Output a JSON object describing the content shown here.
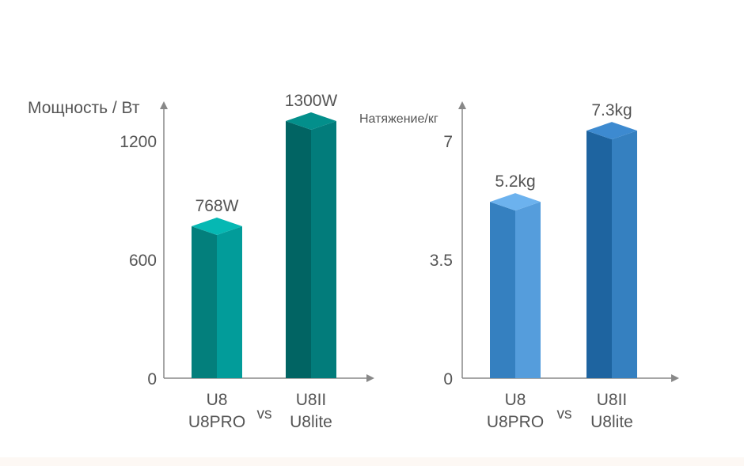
{
  "chart_data": [
    {
      "type": "bar",
      "ylabel": "Мощность / Вт",
      "yticks": [
        0,
        600,
        1200
      ],
      "ylim": [
        0,
        1420
      ],
      "categories": [
        [
          "U8",
          "U8PRO"
        ],
        [
          "U8II",
          "U8lite"
        ]
      ],
      "separator": "vs",
      "values": [
        768,
        1300
      ],
      "data_labels": [
        "768W",
        "1300W"
      ],
      "colors": {
        "bar1": {
          "front": "#037f7c",
          "side": "#029c9a",
          "top": "#06b8b3"
        },
        "bar2": {
          "front": "#016463",
          "side": "#027c7b",
          "top": "#038f8b"
        }
      },
      "axis_color": "#888888"
    },
    {
      "type": "bar",
      "ylabel": "Натяжение/кг",
      "yticks": [
        0,
        3.5,
        7
      ],
      "ylim": [
        0,
        8.3
      ],
      "categories": [
        [
          "U8",
          "U8PRO"
        ],
        [
          "U8II",
          "U8lite"
        ]
      ],
      "separator": "vs",
      "values": [
        5.2,
        7.3
      ],
      "data_labels": [
        "5.2kg",
        "7.3kg"
      ],
      "colors": {
        "bar1": {
          "front": "#3580c0",
          "side": "#559ddc",
          "top": "#6cb2ee"
        },
        "bar2": {
          "front": "#1e64a0",
          "side": "#3580c0",
          "top": "#3d8ad0"
        }
      },
      "axis_color": "#888888"
    }
  ]
}
